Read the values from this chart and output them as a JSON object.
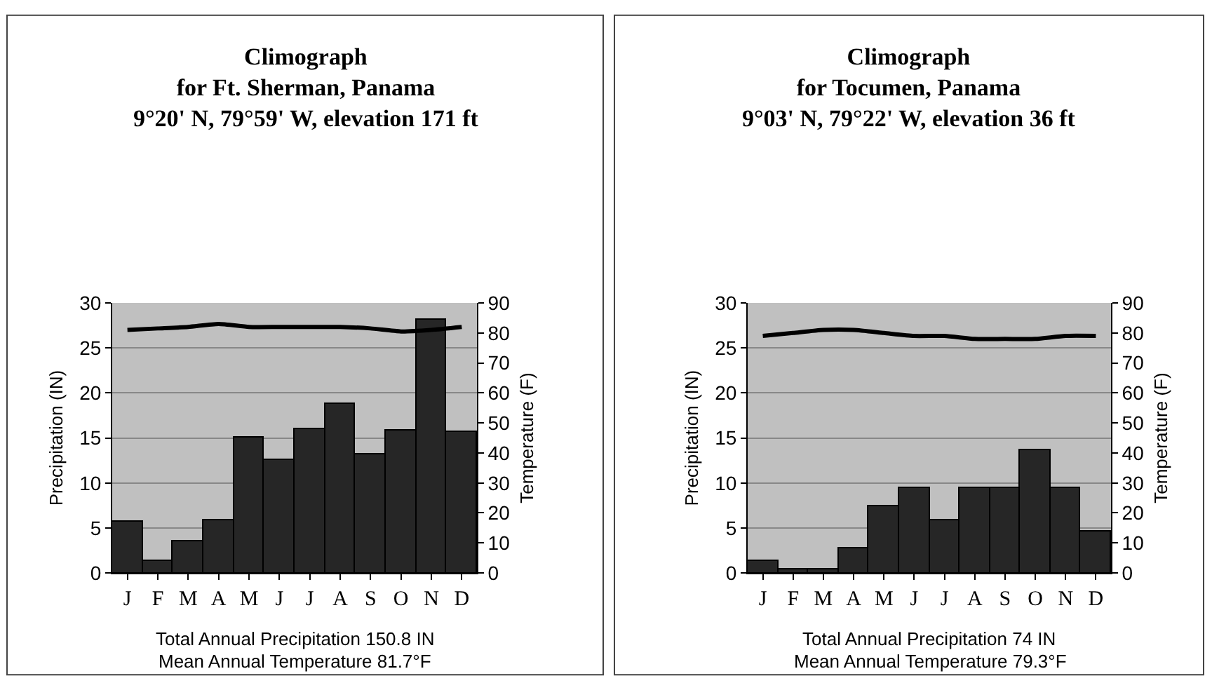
{
  "chart_data": [
    {
      "type": "bar",
      "title": "Climograph\nfor Ft. Sherman, Panama\n9°20' N, 79°59' W, elevation 171 ft",
      "ylabel": "Precipitation (IN)",
      "y2label": "Temperature (F)",
      "categories": [
        "J",
        "F",
        "M",
        "A",
        "M",
        "J",
        "J",
        "A",
        "S",
        "O",
        "N",
        "D"
      ],
      "series": [
        {
          "color": "#262626",
          "values": [
            5.7,
            1.4,
            3.5,
            5.9,
            15.0,
            12.5,
            16.0,
            18.8,
            13.2,
            15.8,
            28.2,
            15.6
          ]
        },
        {
          "type": "line",
          "axis": "y2",
          "color": "#000000",
          "values": [
            81,
            81.5,
            82,
            83,
            82,
            82,
            82,
            82,
            81.5,
            80.5,
            81,
            82
          ]
        }
      ],
      "ylim": [
        0,
        30
      ],
      "yticks": [
        0,
        5,
        10,
        15,
        20,
        25,
        30
      ],
      "y2lim": [
        0,
        90
      ],
      "y2ticks": [
        0,
        10,
        20,
        30,
        40,
        50,
        60,
        70,
        80,
        90
      ],
      "grid": "y",
      "annotations": [
        "Total Annual Precipitation 150.8 IN",
        "Mean Annual Temperature 81.7°F"
      ]
    },
    {
      "type": "bar",
      "title": "Climograph\nfor Tocumen, Panama\n9°03' N, 79°22' W, elevation 36 ft",
      "ylabel": "Precipitation (IN)",
      "y2label": "Temperature (F)",
      "categories": [
        "J",
        "F",
        "M",
        "A",
        "M",
        "J",
        "J",
        "A",
        "S",
        "O",
        "N",
        "D"
      ],
      "series": [
        {
          "color": "#262626",
          "values": [
            1.4,
            0.4,
            0.4,
            2.7,
            7.4,
            9.5,
            5.8,
            9.5,
            9.5,
            13.6,
            9.4,
            4.6
          ]
        },
        {
          "type": "line",
          "axis": "y2",
          "color": "#000000",
          "values": [
            79,
            80,
            81,
            81,
            80,
            79,
            79,
            78,
            78,
            78,
            79,
            79
          ]
        }
      ],
      "ylim": [
        0,
        30
      ],
      "yticks": [
        0,
        5,
        10,
        15,
        20,
        25,
        30
      ],
      "y2lim": [
        0,
        90
      ],
      "y2ticks": [
        0,
        10,
        20,
        30,
        40,
        50,
        60,
        70,
        80,
        90
      ],
      "grid": "y",
      "annotations": [
        "Total Annual Precipitation 74 IN",
        "Mean Annual Temperature 79.3°F"
      ]
    }
  ]
}
